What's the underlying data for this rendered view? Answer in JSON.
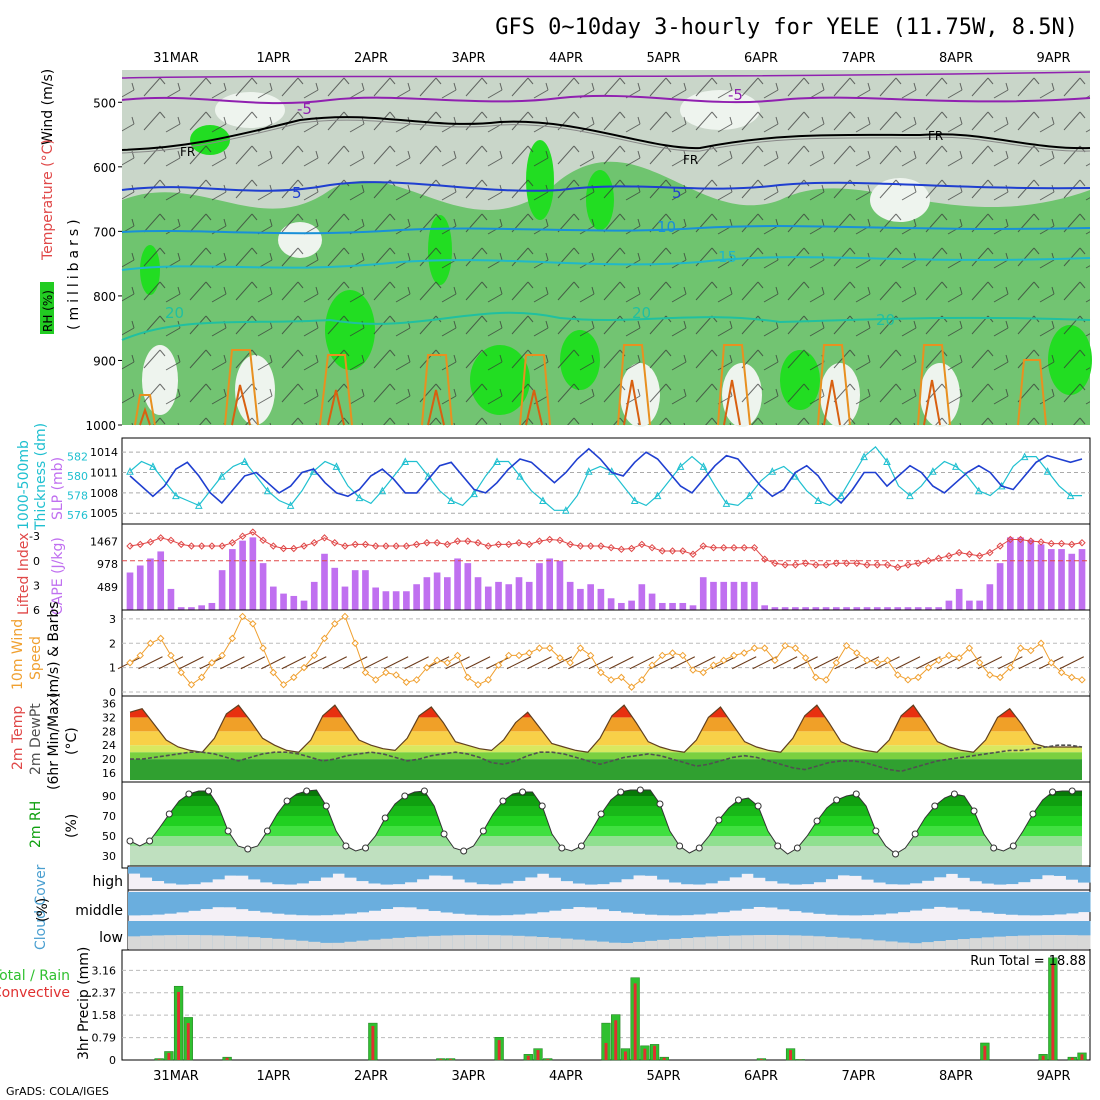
{
  "title": "GFS 0~10day 3-hourly for YELE (11.75W, 8.5N)",
  "credit": "GrADS: COLA/IGES",
  "date_labels": [
    "31MAR",
    "1APR",
    "2APR",
    "3APR",
    "4APR",
    "5APR",
    "6APR",
    "7APR",
    "8APR",
    "9APR"
  ],
  "panel_labels": {
    "upper_air": [
      "Wind (m/s)",
      "Temperature (°C)",
      "RH (%)",
      "(millibars)"
    ],
    "thickness": [
      "1000-500mb",
      "Thickness (dm)",
      "SLP (mb)"
    ],
    "stability": [
      "Lifted Index",
      "CAPE (J/kg)"
    ],
    "wind10m": [
      "10m Wind",
      "Speed",
      "(m/s) & Barbs"
    ],
    "temp2m": [
      "2m Temp",
      "2m DewPt",
      "(6hr Min/Max)",
      "(°C)"
    ],
    "rh2m": [
      "2m RH",
      "(%)"
    ],
    "cloud": [
      "Cloud Cover",
      "(%)"
    ],
    "precip": [
      "Total / Rain",
      "Convective",
      "3hr Precip (mm)"
    ]
  },
  "run_total_label": "Run Total = 18.88",
  "cloud_level_labels": [
    "high",
    "middle",
    "low"
  ],
  "chart_data": [
    {
      "type": "heatmap",
      "panel": "upper-air",
      "ylabel": "(millibars)",
      "y_ticks": [
        500,
        600,
        700,
        800,
        900,
        1000
      ],
      "ylim": [
        1000,
        450
      ],
      "contour_labels": [
        "-5",
        "FR",
        "-5",
        "5",
        "10",
        "15",
        "20",
        "20",
        "20"
      ],
      "rh_legend": "RH (%)"
    },
    {
      "type": "line",
      "panel": "thickness-slp",
      "left_ticks": [
        576,
        578,
        580,
        582
      ],
      "right_ticks": [
        1005,
        1008,
        1011,
        1014
      ],
      "series": [
        {
          "name": "1000-500mb Thickness (dm)",
          "color": "#20c0d0",
          "values": [
            580.5,
            581.5,
            581.0,
            579.5,
            578.0,
            577.5,
            577.0,
            578.5,
            580.0,
            581.0,
            581.5,
            580.0,
            578.5,
            577.5,
            577.0,
            578.5,
            580.5,
            581.5,
            581.0,
            579.0,
            577.8,
            577.2,
            578.5,
            580.0,
            581.5,
            581.5,
            580.0,
            578.5,
            577.5,
            577.0,
            578.2,
            580.0,
            581.5,
            581.5,
            580.0,
            578.5,
            577.5,
            576.5,
            576.5,
            578.0,
            580.5,
            581.0,
            580.5,
            579.0,
            577.5,
            577.0,
            578.0,
            579.5,
            581.0,
            582.0,
            581.0,
            579.0,
            577.2,
            577.0,
            578.0,
            579.5,
            580.5,
            581.0,
            580.0,
            578.5,
            577.5,
            577.0,
            578.0,
            580.0,
            582.0,
            583.0,
            581.5,
            579.0,
            578.0,
            579.0,
            580.5,
            581.5,
            581.0,
            580.0,
            578.5,
            578.0,
            579.0,
            581.0,
            582.0,
            582.0,
            580.5,
            579.0,
            578.0,
            578.0
          ]
        },
        {
          "name": "SLP (mb)",
          "color": "#1f3fd0",
          "values": [
            1010.5,
            1009.0,
            1007.5,
            1009.0,
            1011.5,
            1012.5,
            1010.5,
            1008.0,
            1006.5,
            1008.5,
            1010.5,
            1011.0,
            1009.5,
            1008.0,
            1009.0,
            1011.0,
            1011.5,
            1009.5,
            1008.0,
            1007.5,
            1008.5,
            1010.5,
            1011.5,
            1010.0,
            1008.0,
            1008.0,
            1010.0,
            1012.0,
            1012.5,
            1010.5,
            1008.5,
            1008.0,
            1009.5,
            1011.5,
            1013.0,
            1012.5,
            1011.0,
            1009.5,
            1011.0,
            1013.0,
            1014.5,
            1013.0,
            1011.0,
            1010.5,
            1012.5,
            1014.0,
            1013.0,
            1011.0,
            1009.0,
            1008.0,
            1010.0,
            1012.0,
            1013.5,
            1013.0,
            1011.0,
            1009.0,
            1007.5,
            1008.5,
            1011.0,
            1012.0,
            1010.5,
            1008.0,
            1006.5,
            1008.5,
            1011.0,
            1011.0,
            1009.0,
            1010.5,
            1012.0,
            1011.0,
            1009.0,
            1008.0,
            1009.5,
            1011.0,
            1012.0,
            1011.0,
            1009.0,
            1008.5,
            1010.5,
            1012.5,
            1013.5,
            1013.0,
            1012.5,
            1013.0
          ]
        }
      ]
    },
    {
      "type": "bar",
      "panel": "lifted-index-cape",
      "cape_ticks": [
        489,
        978,
        1467
      ],
      "li_ticks": [
        -3,
        0,
        3,
        6
      ],
      "series": [
        {
          "name": "CAPE (J/kg)",
          "color": "#c070f0",
          "values": [
            800,
            950,
            1100,
            1250,
            450,
            60,
            60,
            100,
            150,
            850,
            1300,
            1480,
            1550,
            1000,
            500,
            350,
            300,
            200,
            600,
            1200,
            900,
            500,
            850,
            850,
            480,
            400,
            400,
            400,
            550,
            700,
            800,
            700,
            1100,
            1000,
            700,
            500,
            600,
            550,
            700,
            600,
            1000,
            1100,
            1050,
            600,
            450,
            550,
            450,
            250,
            150,
            200,
            550,
            350,
            150,
            150,
            150,
            100,
            700,
            600,
            600,
            600,
            600,
            600,
            100,
            60,
            60,
            60,
            60,
            60,
            60,
            60,
            60,
            60,
            60,
            60,
            60,
            60,
            60,
            60,
            60,
            60,
            200,
            450,
            200,
            200,
            550,
            1000,
            1550,
            1550,
            1500,
            1400,
            1300,
            1300,
            1200,
            1300
          ]
        },
        {
          "name": "Lifted Index",
          "color": "#e04848",
          "values": [
            -1.8,
            -2.0,
            -2.3,
            -2.8,
            -2.5,
            -2.0,
            -1.8,
            -1.8,
            -1.8,
            -1.8,
            -2.2,
            -3.0,
            -3.5,
            -2.5,
            -1.8,
            -1.5,
            -1.5,
            -1.8,
            -2.2,
            -2.8,
            -2.2,
            -1.8,
            -2.0,
            -2.0,
            -1.8,
            -1.8,
            -1.8,
            -1.8,
            -2.0,
            -2.2,
            -2.2,
            -2.0,
            -2.4,
            -2.4,
            -2.2,
            -1.8,
            -2.0,
            -2.0,
            -2.2,
            -2.0,
            -2.4,
            -2.6,
            -2.5,
            -2.0,
            -1.8,
            -1.8,
            -1.8,
            -1.6,
            -1.4,
            -1.5,
            -2.0,
            -1.6,
            -1.2,
            -1.2,
            -1.2,
            -0.8,
            -1.8,
            -1.6,
            -1.6,
            -1.6,
            -1.6,
            -1.6,
            -0.2,
            0.3,
            0.5,
            0.5,
            0.3,
            0.5,
            0.5,
            0.3,
            0.3,
            0.3,
            0.5,
            0.5,
            0.5,
            0.8,
            0.5,
            0.3,
            0.0,
            -0.3,
            -0.6,
            -1.0,
            -0.8,
            -0.6,
            -1.0,
            -1.8,
            -2.6,
            -2.6,
            -2.4,
            -2.3,
            -2.1,
            -2.1,
            -2.0,
            -2.2
          ]
        }
      ]
    },
    {
      "type": "line",
      "panel": "wind-10m",
      "ylim": [
        0,
        3.2
      ],
      "y_ticks": [
        0,
        1,
        2,
        3
      ],
      "series": [
        {
          "name": "Speed",
          "color": "#f0a030",
          "values": [
            1.2,
            1.5,
            2.0,
            2.2,
            1.5,
            0.8,
            0.3,
            0.6,
            1.2,
            1.5,
            2.2,
            3.1,
            2.8,
            1.8,
            0.8,
            0.3,
            0.6,
            1.0,
            1.5,
            2.2,
            2.8,
            3.1,
            2.0,
            0.8,
            0.5,
            0.8,
            0.7,
            0.4,
            0.5,
            1.0,
            1.3,
            1.2,
            1.5,
            0.6,
            0.3,
            0.5,
            1.1,
            1.5,
            1.5,
            1.6,
            1.8,
            1.8,
            1.4,
            1.2,
            1.8,
            1.5,
            0.8,
            0.5,
            0.6,
            0.2,
            0.5,
            1.1,
            1.5,
            1.6,
            1.5,
            0.9,
            0.8,
            1.1,
            1.3,
            1.5,
            1.6,
            1.8,
            1.8,
            1.3,
            1.9,
            1.8,
            1.4,
            0.6,
            0.5,
            1.2,
            1.9,
            1.6,
            1.3,
            1.2,
            1.3,
            0.7,
            0.5,
            0.6,
            1.0,
            1.3,
            1.5,
            1.4,
            1.8,
            1.2,
            0.7,
            0.6,
            1.0,
            1.8,
            1.7,
            2.0,
            1.2,
            0.8,
            0.6,
            0.5
          ]
        }
      ]
    },
    {
      "type": "area",
      "panel": "temp-2m",
      "ylim": [
        14,
        37
      ],
      "y_ticks": [
        16,
        20,
        24,
        28,
        32,
        36
      ],
      "series": [
        {
          "name": "2m Temp",
          "color": "#e03010",
          "values": [
            33.5,
            34.5,
            30.0,
            25.5,
            23.5,
            22.5,
            22.0,
            26.0,
            33.0,
            35.5,
            31.0,
            26.0,
            24.0,
            22.5,
            22.0,
            25.5,
            32.5,
            35.5,
            30.5,
            25.5,
            24.0,
            23.0,
            22.5,
            26.0,
            32.5,
            35.0,
            30.5,
            25.0,
            24.0,
            23.0,
            22.5,
            25.5,
            30.5,
            33.5,
            29.0,
            24.5,
            23.5,
            22.5,
            22.0,
            26.0,
            32.5,
            35.5,
            30.5,
            25.0,
            23.5,
            22.5,
            22.0,
            25.5,
            32.0,
            35.0,
            30.0,
            25.0,
            23.5,
            22.5,
            22.0,
            26.0,
            32.5,
            35.5,
            30.5,
            25.0,
            23.5,
            22.5,
            22.0,
            25.5,
            32.5,
            35.5,
            30.5,
            25.0,
            23.5,
            22.5,
            22.0,
            25.5,
            32.0,
            34.5,
            30.0,
            24.5,
            23.5,
            23.5,
            23.5,
            23.5
          ]
        },
        {
          "name": "2m DewPt",
          "color": "#505050",
          "values": [
            20.0,
            20.0,
            20.5,
            21.0,
            21.5,
            22.0,
            22.0,
            21.5,
            20.5,
            19.5,
            20.5,
            21.5,
            22.0,
            22.0,
            21.5,
            20.5,
            19.5,
            20.0,
            21.0,
            21.5,
            22.0,
            21.5,
            20.5,
            19.5,
            20.0,
            21.0,
            21.5,
            22.0,
            21.5,
            20.5,
            19.0,
            18.5,
            19.5,
            21.0,
            22.0,
            22.0,
            21.5,
            20.5,
            19.5,
            18.5,
            19.5,
            20.5,
            21.0,
            21.5,
            21.0,
            20.0,
            19.0,
            18.0,
            18.5,
            19.5,
            20.5,
            21.0,
            20.5,
            19.5,
            18.5,
            17.5,
            17.0,
            18.0,
            19.0,
            19.5,
            19.5,
            19.0,
            18.0,
            17.0,
            16.5,
            17.5,
            18.5,
            19.5,
            20.0,
            20.5,
            21.0,
            21.5,
            22.0,
            22.5,
            22.5,
            23.0,
            23.5,
            24.0,
            24.0,
            23.5
          ]
        }
      ]
    },
    {
      "type": "area",
      "panel": "rh-2m",
      "ylim": [
        20,
        100
      ],
      "y_ticks": [
        30,
        50,
        70,
        90
      ],
      "series": [
        {
          "name": "2m RH",
          "color": "#10a010",
          "values": [
            45,
            40,
            45,
            58,
            72,
            85,
            92,
            95,
            95,
            80,
            55,
            40,
            37,
            40,
            55,
            72,
            85,
            92,
            95,
            96,
            80,
            55,
            40,
            35,
            38,
            50,
            68,
            82,
            90,
            94,
            95,
            80,
            52,
            38,
            35,
            40,
            55,
            72,
            85,
            92,
            94,
            94,
            80,
            52,
            38,
            35,
            40,
            55,
            72,
            86,
            94,
            96,
            96,
            96,
            82,
            55,
            40,
            33,
            38,
            50,
            66,
            78,
            86,
            88,
            80,
            55,
            40,
            32,
            38,
            50,
            65,
            78,
            86,
            90,
            92,
            80,
            55,
            40,
            32,
            38,
            52,
            68,
            80,
            88,
            92,
            90,
            75,
            52,
            38,
            35,
            40,
            55,
            72,
            86,
            94,
            95,
            95,
            95
          ]
        }
      ]
    },
    {
      "type": "bar",
      "panel": "cloud-cover",
      "levels": [
        "high",
        "middle",
        "low"
      ]
    },
    {
      "type": "bar",
      "panel": "precip-3hr",
      "ylabel": "3hr Precip (mm)",
      "ylim": [
        0,
        3.7
      ],
      "y_ticks": [
        0,
        0.79,
        1.58,
        2.37,
        3.16
      ],
      "series": [
        {
          "name": "Total / Rain",
          "color": "#30c030",
          "values": [
            0,
            0,
            0,
            0.05,
            0.3,
            2.6,
            1.5,
            0,
            0,
            0,
            0.1,
            0,
            0,
            0,
            0,
            0,
            0,
            0,
            0,
            0,
            0,
            0,
            0,
            0,
            0,
            1.3,
            0,
            0,
            0,
            0,
            0,
            0,
            0.05,
            0.05,
            0,
            0,
            0,
            0,
            0.8,
            0,
            0,
            0.2,
            0.4,
            0.05,
            0,
            0,
            0,
            0,
            0,
            1.3,
            1.6,
            0.4,
            2.9,
            0.5,
            0.55,
            0.1,
            0,
            0,
            0,
            0,
            0,
            0,
            0,
            0,
            0,
            0.05,
            0,
            0,
            0.4,
            0.02,
            0,
            0,
            0,
            0,
            0,
            0,
            0,
            0,
            0,
            0,
            0,
            0,
            0,
            0,
            0,
            0,
            0,
            0,
            0.6,
            0,
            0,
            0,
            0,
            0,
            0.2,
            3.6,
            0,
            0.1,
            0.25
          ]
        },
        {
          "name": "Convective",
          "color": "#e03030",
          "values": [
            0,
            0,
            0,
            0.03,
            0.25,
            2.4,
            1.3,
            0,
            0,
            0,
            0.08,
            0,
            0,
            0,
            0,
            0,
            0,
            0,
            0,
            0,
            0,
            0,
            0,
            0,
            0,
            1.2,
            0,
            0,
            0,
            0,
            0,
            0,
            0.03,
            0.03,
            0,
            0,
            0,
            0,
            0.7,
            0,
            0,
            0.15,
            0.35,
            0.03,
            0,
            0,
            0,
            0,
            0,
            0.6,
            1.4,
            0.3,
            2.7,
            0.4,
            0.5,
            0.08,
            0,
            0,
            0,
            0,
            0,
            0,
            0,
            0,
            0,
            0.03,
            0,
            0,
            0.35,
            0.01,
            0,
            0,
            0,
            0,
            0,
            0,
            0,
            0,
            0,
            0,
            0,
            0,
            0,
            0,
            0,
            0,
            0,
            0,
            0.5,
            0,
            0,
            0,
            0,
            0,
            0.15,
            3.4,
            0,
            0.08,
            0.2
          ]
        }
      ]
    }
  ]
}
